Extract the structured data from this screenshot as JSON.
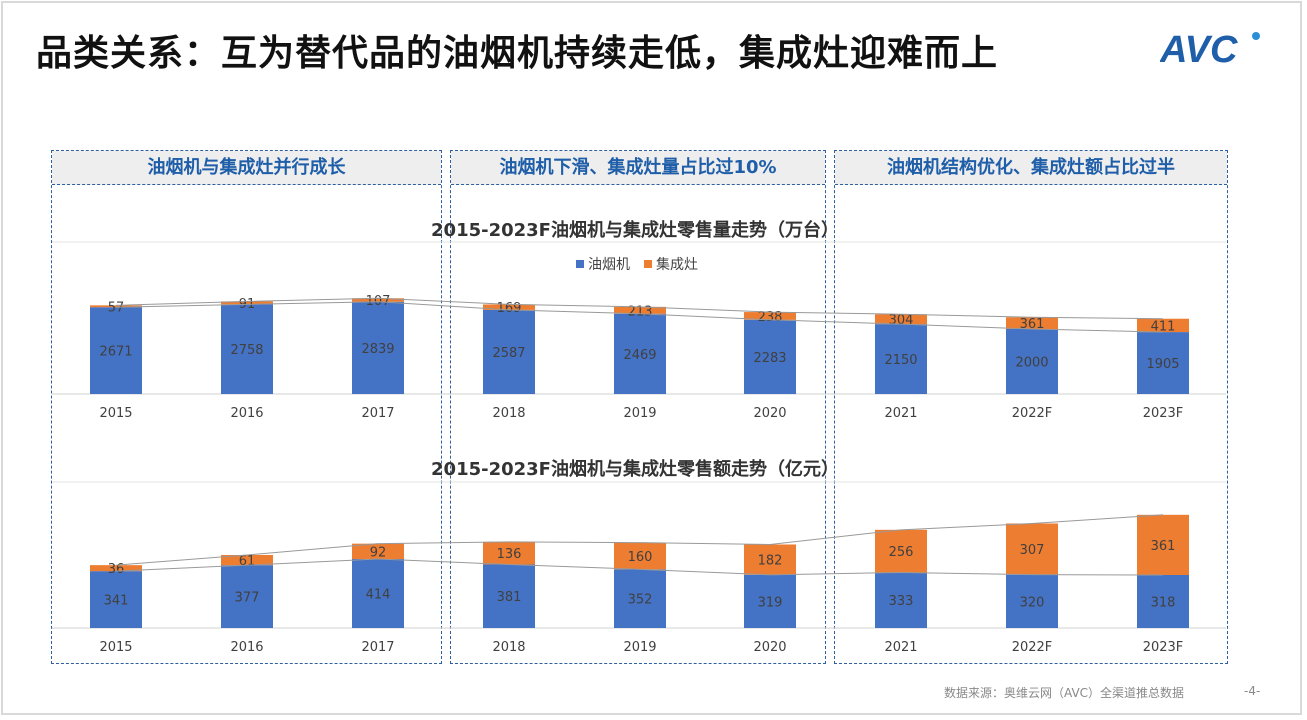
{
  "title": "品类关系：互为替代品的油烟机持续走低，集成灶迎难而上",
  "logo": "AVC",
  "sections": [
    {
      "label": "油烟机与集成灶并行成长"
    },
    {
      "label": "油烟机下滑、集成灶量占比过10%"
    },
    {
      "label": "油烟机结构优化、集成灶额占比过半"
    }
  ],
  "colors": {
    "range_hood": "#4472c4",
    "integrated_stove": "#ed7d31",
    "section_border": "#2e5f9e"
  },
  "chart_data": [
    {
      "type": "bar",
      "stacked": true,
      "title": "2015-2023F油烟机与集成灶零售量走势（万台）",
      "categories": [
        "2015",
        "2016",
        "2017",
        "2018",
        "2019",
        "2020",
        "2021",
        "2022F",
        "2023F"
      ],
      "series": [
        {
          "name": "油烟机",
          "values": [
            2671,
            2758,
            2839,
            2587,
            2469,
            2283,
            2150,
            2000,
            1905
          ]
        },
        {
          "name": "集成灶",
          "values": [
            57,
            91,
            107,
            169,
            213,
            238,
            304,
            361,
            411
          ]
        }
      ],
      "legend": "top-center"
    },
    {
      "type": "bar",
      "stacked": true,
      "title": "2015-2023F油烟机与集成灶零售额走势（亿元）",
      "categories": [
        "2015",
        "2016",
        "2017",
        "2018",
        "2019",
        "2020",
        "2021",
        "2022F",
        "2023F"
      ],
      "series": [
        {
          "name": "油烟机",
          "values": [
            341,
            377,
            414,
            381,
            352,
            319,
            333,
            320,
            318
          ]
        },
        {
          "name": "集成灶",
          "values": [
            36,
            61,
            92,
            136,
            160,
            182,
            256,
            307,
            361
          ]
        }
      ]
    }
  ],
  "source": "数据来源：奥维云网（AVC）全渠道推总数据",
  "page": "-4-"
}
